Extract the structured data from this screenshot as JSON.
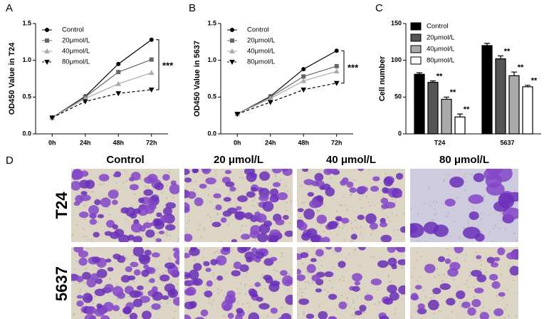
{
  "chart_data": [
    {
      "type": "line",
      "panel": "A",
      "ylabel": "OD450 Value in T24",
      "categories": [
        "0h",
        "24h",
        "48h",
        "72h"
      ],
      "ylim": [
        0,
        1.5
      ],
      "yticks": [
        {
          "value": 0,
          "label": "0.0"
        },
        {
          "value": 0.5,
          "label": "0.5"
        },
        {
          "value": 1,
          "label": "1.0"
        },
        {
          "value": 1.5,
          "label": "1.5"
        }
      ],
      "annotation": "***",
      "series": [
        {
          "name": "Control",
          "color": "#000000",
          "marker": "circle",
          "dashed": false,
          "values": [
            0.22,
            0.51,
            0.95,
            1.28
          ]
        },
        {
          "name": "20μmol/L",
          "color": "#666666",
          "marker": "square",
          "dashed": false,
          "values": [
            0.22,
            0.5,
            0.84,
            1.01
          ]
        },
        {
          "name": "40μmol/L",
          "color": "#aaaaaa",
          "marker": "triangle",
          "dashed": false,
          "values": [
            0.22,
            0.48,
            0.68,
            0.83
          ]
        },
        {
          "name": "80μmol/L",
          "color": "#000000",
          "marker": "triangle-down",
          "dashed": true,
          "values": [
            0.22,
            0.44,
            0.55,
            0.6
          ]
        }
      ]
    },
    {
      "type": "line",
      "panel": "B",
      "ylabel": "OD450 Value in 5637",
      "categories": [
        "0h",
        "24h",
        "48h",
        "72h"
      ],
      "ylim": [
        0,
        1.5
      ],
      "yticks": [
        {
          "value": 0,
          "label": "0.0"
        },
        {
          "value": 0.5,
          "label": "0.5"
        },
        {
          "value": 1,
          "label": "1.0"
        },
        {
          "value": 1.5,
          "label": "1.5"
        }
      ],
      "annotation": "***",
      "series": [
        {
          "name": "Control",
          "color": "#000000",
          "marker": "circle",
          "dashed": false,
          "values": [
            0.27,
            0.51,
            0.88,
            1.13
          ]
        },
        {
          "name": "20μmol/L",
          "color": "#666666",
          "marker": "square",
          "dashed": false,
          "values": [
            0.27,
            0.5,
            0.78,
            0.92
          ]
        },
        {
          "name": "40μmol/L",
          "color": "#aaaaaa",
          "marker": "triangle",
          "dashed": false,
          "values": [
            0.27,
            0.48,
            0.72,
            0.85
          ]
        },
        {
          "name": "80μmol/L",
          "color": "#000000",
          "marker": "triangle-down",
          "dashed": true,
          "values": [
            0.27,
            0.43,
            0.6,
            0.69
          ]
        }
      ]
    },
    {
      "type": "bar",
      "panel": "C",
      "ylabel": "Cell number",
      "categories": [
        "T24",
        "5637"
      ],
      "ylim": [
        0,
        150
      ],
      "yticks": [
        0,
        50,
        100,
        150
      ],
      "series": [
        {
          "name": "Control",
          "color": "#000000",
          "values": [
            81,
            120
          ],
          "errors": [
            2,
            3
          ]
        },
        {
          "name": "20μmol/L",
          "color": "#555555",
          "values": [
            70,
            102
          ],
          "errors": [
            2,
            4
          ],
          "annotations": [
            "**",
            "**"
          ]
        },
        {
          "name": "40μmol/L",
          "color": "#aaaaaa",
          "values": [
            47,
            79
          ],
          "errors": [
            3,
            5
          ],
          "annotations": [
            "**",
            "**"
          ]
        },
        {
          "name": "80μmol/L",
          "color": "#ffffff",
          "values": [
            23,
            64
          ],
          "errors": [
            4,
            2
          ],
          "annotations": [
            "**",
            "**"
          ]
        }
      ]
    }
  ],
  "images": {
    "panel": "D",
    "columns": [
      "Control",
      "20 μmol/L",
      "40 μmol/L",
      "80 μmol/L"
    ],
    "rows": [
      "T24",
      "5637"
    ]
  }
}
